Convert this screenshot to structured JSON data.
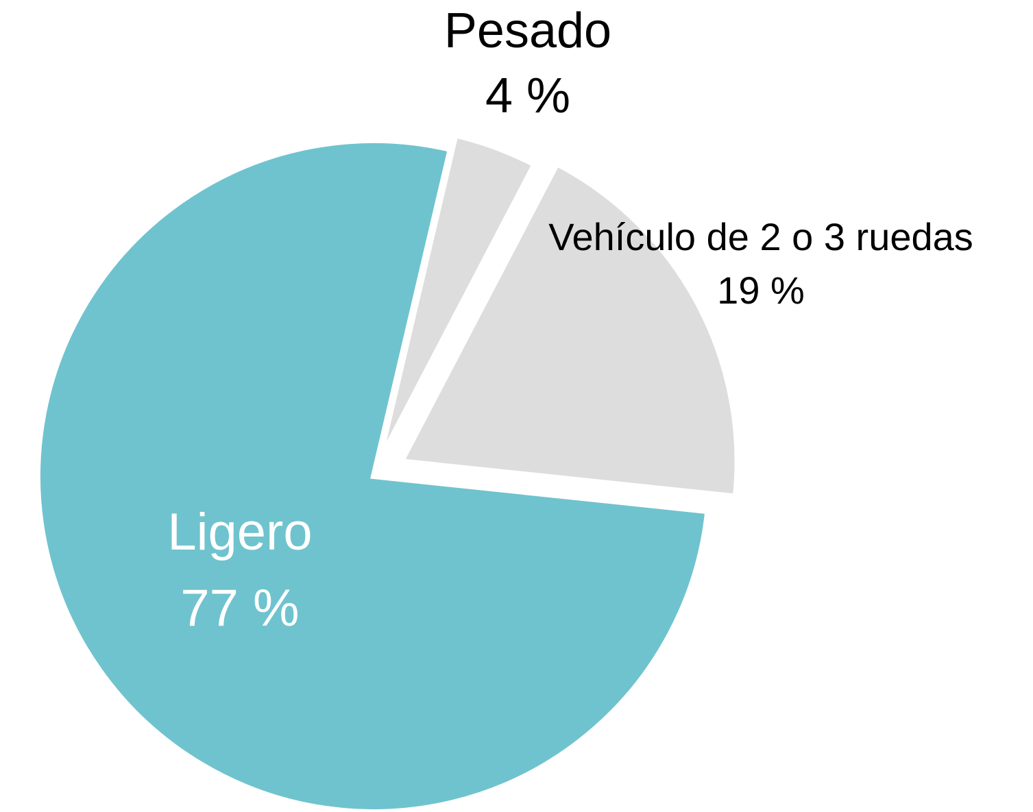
{
  "chart_data": {
    "type": "pie",
    "categories": [
      "Ligero",
      "Pesado",
      "Vehículo de 2 o 3 ruedas"
    ],
    "values": [
      77,
      4,
      19
    ],
    "value_labels": [
      "77 %",
      "4 %",
      "19 %"
    ],
    "colors": [
      "#6fc3ce",
      "#dddddd",
      "#dddddd"
    ]
  }
}
